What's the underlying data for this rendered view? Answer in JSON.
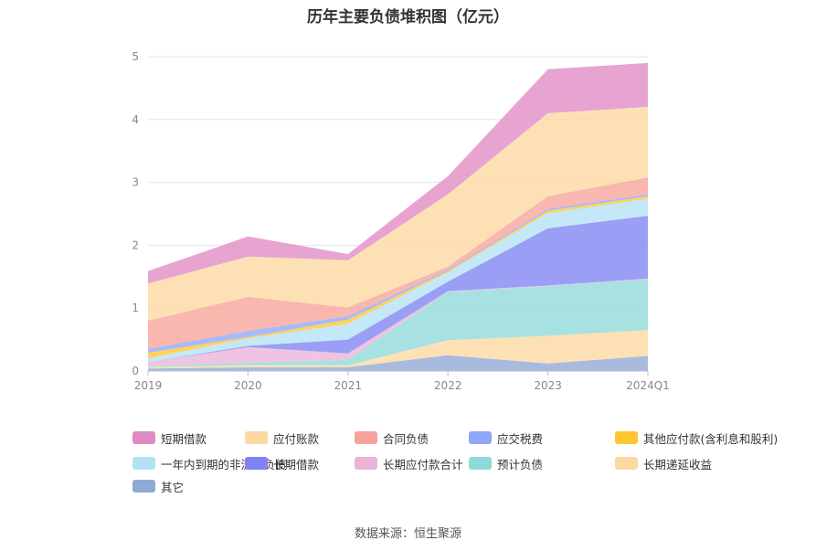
{
  "chart_data": {
    "type": "area",
    "stacked": true,
    "title": "历年主要负债堆积图（亿元）",
    "categories": [
      "2019",
      "2020",
      "2021",
      "2022",
      "2023",
      "2024Q1"
    ],
    "ylim": [
      0,
      5
    ],
    "yticks": [
      0,
      1,
      2,
      3,
      4,
      5
    ],
    "grid": true,
    "legend_position": "bottom",
    "series": [
      {
        "name": "其它",
        "color": "#8fa8d6",
        "values": [
          0.04,
          0.06,
          0.06,
          0.25,
          0.12,
          0.24
        ]
      },
      {
        "name": "长期递延收益",
        "color": "#fcd9a0",
        "values": [
          0.02,
          0.03,
          0.03,
          0.24,
          0.44,
          0.41
        ]
      },
      {
        "name": "预计负债",
        "color": "#8fd9d9",
        "values": [
          0.02,
          0.04,
          0.09,
          0.77,
          0.79,
          0.81
        ]
      },
      {
        "name": "长期应付款合计",
        "color": "#eab4d9",
        "values": [
          0.06,
          0.25,
          0.1,
          0.01,
          0.01,
          0.01
        ]
      },
      {
        "name": "长期借款",
        "color": "#7f83f2",
        "values": [
          0.0,
          0.02,
          0.22,
          0.15,
          0.91,
          1.0
        ]
      },
      {
        "name": "一年内到期的非流动负债",
        "color": "#b4e2f5",
        "values": [
          0.06,
          0.12,
          0.25,
          0.15,
          0.24,
          0.27
        ]
      },
      {
        "name": "其他应付款(含利息和股利)",
        "color": "#ffc533",
        "values": [
          0.09,
          0.02,
          0.07,
          0.02,
          0.04,
          0.04
        ]
      },
      {
        "name": "应交税费",
        "color": "#8ea7f7",
        "values": [
          0.06,
          0.1,
          0.05,
          0.02,
          0.03,
          0.03
        ]
      },
      {
        "name": "合同负债",
        "color": "#f7a39a",
        "values": [
          0.45,
          0.54,
          0.14,
          0.05,
          0.2,
          0.27
        ]
      },
      {
        "name": "应付账款",
        "color": "#fcd9a0",
        "values": [
          0.59,
          0.64,
          0.75,
          1.15,
          1.32,
          1.12
        ]
      },
      {
        "name": "短期借款",
        "color": "#e08ac4",
        "values": [
          0.2,
          0.32,
          0.1,
          0.29,
          0.7,
          0.7
        ]
      }
    ]
  },
  "source": "数据来源：恒生聚源"
}
